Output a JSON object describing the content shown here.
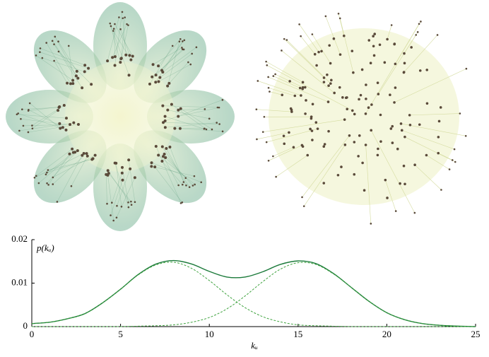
{
  "chart_data": {
    "type": "line",
    "x": [
      0,
      1,
      2,
      3,
      4,
      5,
      6,
      7,
      8,
      9,
      10,
      11,
      12,
      13,
      14,
      15,
      16,
      17,
      18,
      19,
      20,
      21,
      22,
      23,
      24,
      25
    ],
    "series": [
      {
        "color": "#1b7a3a",
        "dash": false,
        "values": [
          0.0007,
          0.001,
          0.0018,
          0.003,
          0.0055,
          0.0086,
          0.012,
          0.0144,
          0.0152,
          0.0144,
          0.0127,
          0.0114,
          0.0114,
          0.0126,
          0.0143,
          0.0151,
          0.0145,
          0.0122,
          0.009,
          0.0058,
          0.0032,
          0.0016,
          0.0007,
          0.0003,
          0.0001,
          0
        ]
      },
      {
        "color": "#3fa33f",
        "dash": true,
        "values": [
          0.0007,
          0.001,
          0.0018,
          0.003,
          0.0055,
          0.0086,
          0.0119,
          0.0142,
          0.0148,
          0.0134,
          0.0106,
          0.0073,
          0.0044,
          0.0023,
          0.0011,
          0.0004,
          0.0002,
          0.0001,
          0,
          0,
          0,
          0,
          0,
          0,
          0,
          0
        ]
      },
      {
        "color": "#3fa33f",
        "dash": true,
        "values": [
          0,
          0,
          0,
          0,
          0,
          0,
          0.0001,
          0.0002,
          0.0004,
          0.001,
          0.0021,
          0.0041,
          0.007,
          0.0103,
          0.0132,
          0.0147,
          0.0143,
          0.0121,
          0.009,
          0.0058,
          0.0032,
          0.0016,
          0.0007,
          0.0003,
          0.0001,
          0
        ]
      }
    ],
    "xlim": [
      0,
      25
    ],
    "xticks": [
      0,
      5,
      10,
      15,
      20,
      25
    ],
    "ylim": [
      0,
      0.02
    ],
    "yticks": [
      0,
      0.01,
      0.02
    ],
    "xlabel": "kᵤ",
    "ylabel": "p(kᵤ)"
  }
}
